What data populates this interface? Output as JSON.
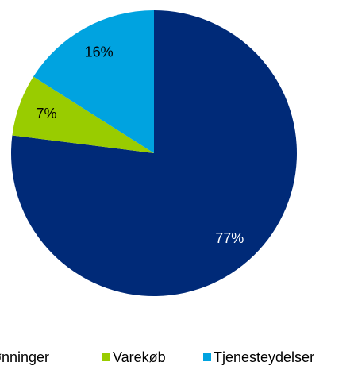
{
  "chart_data": {
    "type": "pie",
    "categories": [
      "Lønninger",
      "Varekøb",
      "Tjenesteydelser"
    ],
    "values": [
      77,
      7,
      16
    ],
    "value_labels": [
      "77%",
      "7%",
      "16%"
    ],
    "colors": [
      "#002a78",
      "#99cc00",
      "#00a3e0"
    ],
    "legend": "bottom"
  }
}
